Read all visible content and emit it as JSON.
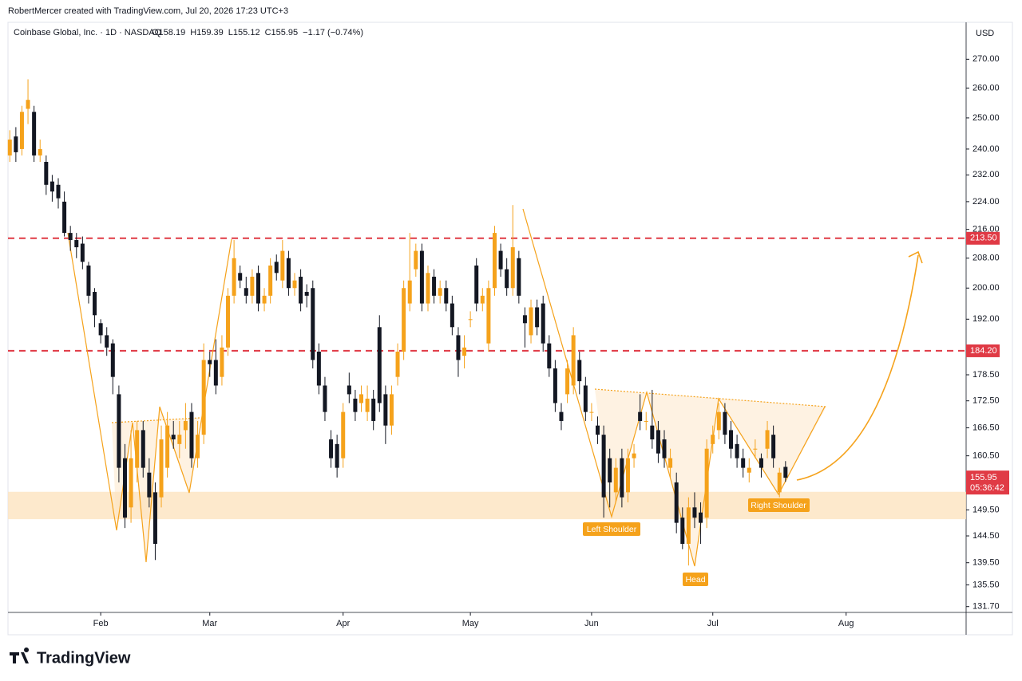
{
  "header": "RobertMercer created with TradingView.com, Jul 20, 2026 17:23 UTC+3",
  "chart_data": {
    "type": "candlestick",
    "symbol": "Coinbase Global, Inc. · 1D · NASDAQ",
    "ohlc_text": [
      "O158.19",
      "H159.39",
      "L155.12",
      "C155.95",
      "−1.17 (−0.74%)"
    ],
    "currency": "USD",
    "log": true,
    "grid": false,
    "up_color": "#f5a21b",
    "down_color": "#131722",
    "level_color": "#e03a45",
    "zone_color": "#fde3bf",
    "ylim": [
      130.7,
      283.4
    ],
    "xlim": [
      -0.3,
      157.8
    ],
    "yticks": [
      {
        "value": 270,
        "label": "270.00"
      },
      {
        "value": 260,
        "label": "260.00"
      },
      {
        "value": 250,
        "label": "250.00"
      },
      {
        "value": 240,
        "label": "240.00"
      },
      {
        "value": 232,
        "label": "232.00"
      },
      {
        "value": 224,
        "label": "224.00"
      },
      {
        "value": 216,
        "label": "216.00"
      },
      {
        "value": 208,
        "label": "208.00"
      },
      {
        "value": 200,
        "label": "200.00"
      },
      {
        "value": 192,
        "label": "192.00"
      },
      {
        "value": 178.5,
        "label": "178.50"
      },
      {
        "value": 172.5,
        "label": "172.50"
      },
      {
        "value": 166.5,
        "label": "166.50"
      },
      {
        "value": 160.5,
        "label": "160.50"
      },
      {
        "value": 149.5,
        "label": "149.50"
      },
      {
        "value": 144.5,
        "label": "144.50"
      },
      {
        "value": 139.5,
        "label": "139.50"
      },
      {
        "value": 135.5,
        "label": "135.50"
      },
      {
        "value": 131.7,
        "label": "131.70"
      }
    ],
    "xticks": [
      {
        "value": 15,
        "label": "Feb"
      },
      {
        "value": 33,
        "label": "Mar"
      },
      {
        "value": 55,
        "label": "Apr"
      },
      {
        "value": 76,
        "label": "May"
      },
      {
        "value": 96,
        "label": "Jun"
      },
      {
        "value": 116,
        "label": "Jul"
      },
      {
        "value": 138,
        "label": "Aug"
      }
    ],
    "levels": [
      {
        "value": 213.5,
        "label": "213.50"
      },
      {
        "value": 184.2,
        "label": "184.20"
      }
    ],
    "zone": [
      147.7,
      153.1
    ],
    "last_price": {
      "value": 155.95,
      "label": "155.95",
      "countdown": "05:36:42"
    },
    "annotations": [
      "Left Shoulder",
      "Head",
      "Right Shoulder"
    ],
    "candles": [
      [
        238,
        246,
        236,
        243
      ],
      [
        244,
        247,
        236,
        239
      ],
      [
        240,
        254,
        238,
        252
      ],
      [
        253,
        263,
        248,
        256
      ],
      [
        252,
        254,
        236,
        238
      ],
      [
        238,
        243,
        236,
        240
      ],
      [
        236,
        238,
        226,
        229
      ],
      [
        230,
        232,
        224,
        227
      ],
      [
        229,
        231,
        222,
        225
      ],
      [
        224,
        227,
        214,
        215
      ],
      [
        215,
        217,
        210,
        213
      ],
      [
        213,
        215,
        208,
        211
      ],
      [
        212,
        214,
        205,
        207
      ],
      [
        206,
        207,
        196,
        198
      ],
      [
        199,
        200,
        190,
        193
      ],
      [
        191,
        192,
        186,
        188
      ],
      [
        188,
        190,
        183,
        185
      ],
      [
        186,
        187,
        174,
        178
      ],
      [
        174,
        176,
        155,
        158
      ],
      [
        160,
        163,
        146,
        148
      ],
      [
        150,
        166,
        147,
        160
      ],
      [
        158,
        168,
        155,
        166
      ],
      [
        166,
        168,
        156,
        158
      ],
      [
        157,
        160,
        150,
        152
      ],
      [
        153,
        155,
        140,
        143
      ],
      [
        152,
        167,
        150,
        164
      ],
      [
        158,
        170,
        156,
        167
      ],
      [
        165,
        168,
        162,
        164
      ],
      [
        163,
        168,
        160,
        165
      ],
      [
        166,
        172,
        162,
        168
      ],
      [
        170,
        172,
        158,
        160
      ],
      [
        160,
        168,
        158,
        165
      ],
      [
        165,
        186,
        163,
        182
      ],
      [
        182,
        184,
        178,
        181
      ],
      [
        182,
        187,
        174,
        176
      ],
      [
        178,
        188,
        176,
        185
      ],
      [
        185,
        200,
        183,
        198
      ],
      [
        198,
        213,
        196,
        208
      ],
      [
        204,
        206,
        200,
        202
      ],
      [
        200,
        203,
        196,
        198
      ],
      [
        198,
        205,
        196,
        203
      ],
      [
        204,
        206,
        194,
        196
      ],
      [
        196,
        200,
        194,
        198
      ],
      [
        198,
        208,
        196,
        206
      ],
      [
        207,
        209,
        202,
        204
      ],
      [
        202,
        213,
        200,
        210
      ],
      [
        208,
        210,
        198,
        200
      ],
      [
        200,
        204,
        198,
        202
      ],
      [
        203,
        205,
        194,
        196
      ],
      [
        199,
        201,
        195,
        198
      ],
      [
        200,
        202,
        180,
        182
      ],
      [
        184,
        186,
        174,
        176
      ],
      [
        176,
        178,
        168,
        170
      ],
      [
        164,
        166,
        158,
        160
      ],
      [
        163,
        165,
        156,
        158
      ],
      [
        160,
        172,
        158,
        170
      ],
      [
        176,
        179,
        172,
        174
      ],
      [
        173,
        175,
        168,
        170
      ],
      [
        172,
        176,
        170,
        174
      ],
      [
        170,
        176,
        168,
        173
      ],
      [
        173,
        175,
        166,
        168
      ],
      [
        190,
        193,
        170,
        172
      ],
      [
        174,
        176,
        163,
        167
      ],
      [
        167,
        176,
        165,
        174
      ],
      [
        178,
        186,
        176,
        184
      ],
      [
        184,
        202,
        182,
        200
      ],
      [
        196,
        215,
        194,
        202
      ],
      [
        205,
        212,
        203,
        210
      ],
      [
        210,
        212,
        194,
        196
      ],
      [
        196,
        206,
        194,
        204
      ],
      [
        203,
        205,
        196,
        198
      ],
      [
        198,
        202,
        196,
        200
      ],
      [
        200,
        202,
        194,
        196
      ],
      [
        196,
        198,
        188,
        190
      ],
      [
        188,
        190,
        178,
        182
      ],
      [
        183,
        188,
        180,
        185
      ],
      [
        192,
        194,
        190,
        192
      ],
      [
        206,
        208,
        194,
        196
      ],
      [
        196,
        200,
        194,
        198
      ],
      [
        186,
        202,
        184,
        200
      ],
      [
        200,
        217,
        198,
        215
      ],
      [
        210,
        212,
        203,
        205
      ],
      [
        205,
        208,
        198,
        200
      ],
      [
        200,
        223,
        198,
        211
      ],
      [
        208,
        210,
        196,
        198
      ],
      [
        193,
        195,
        185,
        191
      ],
      [
        188,
        197,
        186,
        195
      ],
      [
        195,
        197,
        188,
        190
      ],
      [
        196,
        198,
        184,
        186
      ],
      [
        186,
        188,
        178,
        180
      ],
      [
        180,
        182,
        170,
        172
      ],
      [
        170,
        172,
        166,
        168
      ],
      [
        174,
        182,
        172,
        180
      ],
      [
        176,
        190,
        174,
        188
      ],
      [
        182,
        184,
        174,
        177
      ],
      [
        176,
        178,
        168,
        170
      ],
      [
        170,
        172,
        168,
        170
      ],
      [
        167,
        169,
        163,
        165
      ],
      [
        165,
        167,
        148,
        152
      ],
      [
        160,
        162,
        150,
        155
      ],
      [
        153,
        160,
        151,
        158
      ],
      [
        160,
        162,
        150,
        152
      ],
      [
        153,
        162,
        151,
        160
      ],
      [
        160,
        163,
        158,
        161
      ],
      [
        170,
        174,
        166,
        168
      ],
      [
        168,
        170,
        166,
        168
      ],
      [
        167,
        175,
        162,
        164
      ],
      [
        166,
        168,
        159,
        161
      ],
      [
        164,
        166,
        158,
        160
      ],
      [
        158,
        162,
        156,
        160
      ],
      [
        155,
        157,
        145,
        147
      ],
      [
        148,
        150,
        142,
        143
      ],
      [
        143,
        152,
        139,
        150
      ],
      [
        150,
        153,
        146,
        148
      ],
      [
        149,
        151,
        143,
        147
      ],
      [
        148,
        164,
        146,
        162
      ],
      [
        163,
        167,
        161,
        165
      ],
      [
        166,
        172,
        164,
        170
      ],
      [
        170,
        172,
        163,
        165
      ],
      [
        166,
        168,
        160,
        162
      ],
      [
        163,
        165,
        158,
        160
      ],
      [
        160,
        162,
        156,
        158
      ],
      [
        157,
        160,
        155,
        158
      ],
      [
        162,
        164,
        160,
        162
      ],
      [
        160,
        161,
        156,
        158
      ],
      [
        162,
        168,
        160,
        166
      ],
      [
        165,
        167,
        158,
        160
      ],
      [
        153,
        158,
        152,
        157
      ],
      [
        158.19,
        159.39,
        155.12,
        155.95
      ]
    ]
  },
  "logo": "TradingView"
}
